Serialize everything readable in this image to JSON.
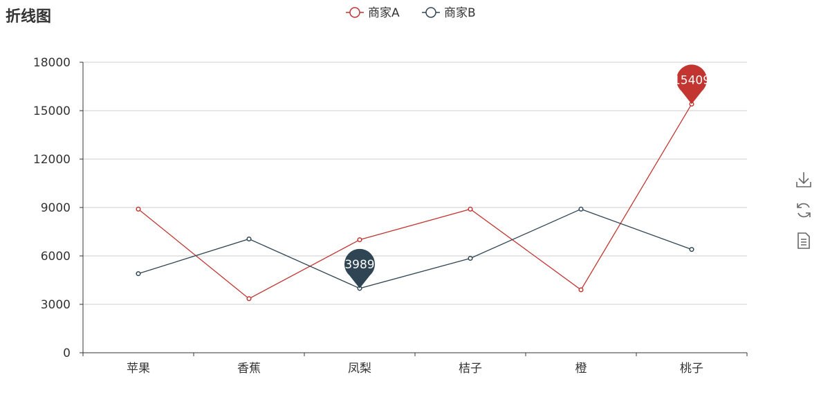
{
  "title": "折线图",
  "colors": {
    "seriesA": "#c23531",
    "seriesB": "#2f4554",
    "axis": "#333333",
    "grid": "#cccccc",
    "text": "#333333",
    "icon": "#666666"
  },
  "toolbox": [
    {
      "name": "save-as-image-icon"
    },
    {
      "name": "restore-icon"
    },
    {
      "name": "data-view-icon"
    }
  ],
  "chart_data": {
    "type": "line",
    "title": "折线图",
    "categories": [
      "苹果",
      "香蕉",
      "凤梨",
      "桔子",
      "橙",
      "桃子"
    ],
    "series": [
      {
        "name": "商家A",
        "values": [
          8900,
          3350,
          7000,
          8900,
          3900,
          15409
        ],
        "markPoint": {
          "type": "max",
          "value": 15409
        }
      },
      {
        "name": "商家B",
        "values": [
          4900,
          7050,
          3989,
          5850,
          8900,
          6400
        ],
        "markPoint": {
          "type": "min",
          "value": 3989
        }
      }
    ],
    "ylim": [
      0,
      18000
    ],
    "yticks": [
      0,
      3000,
      6000,
      9000,
      12000,
      15000,
      18000
    ],
    "grid": true,
    "legend_position": "top-center"
  }
}
